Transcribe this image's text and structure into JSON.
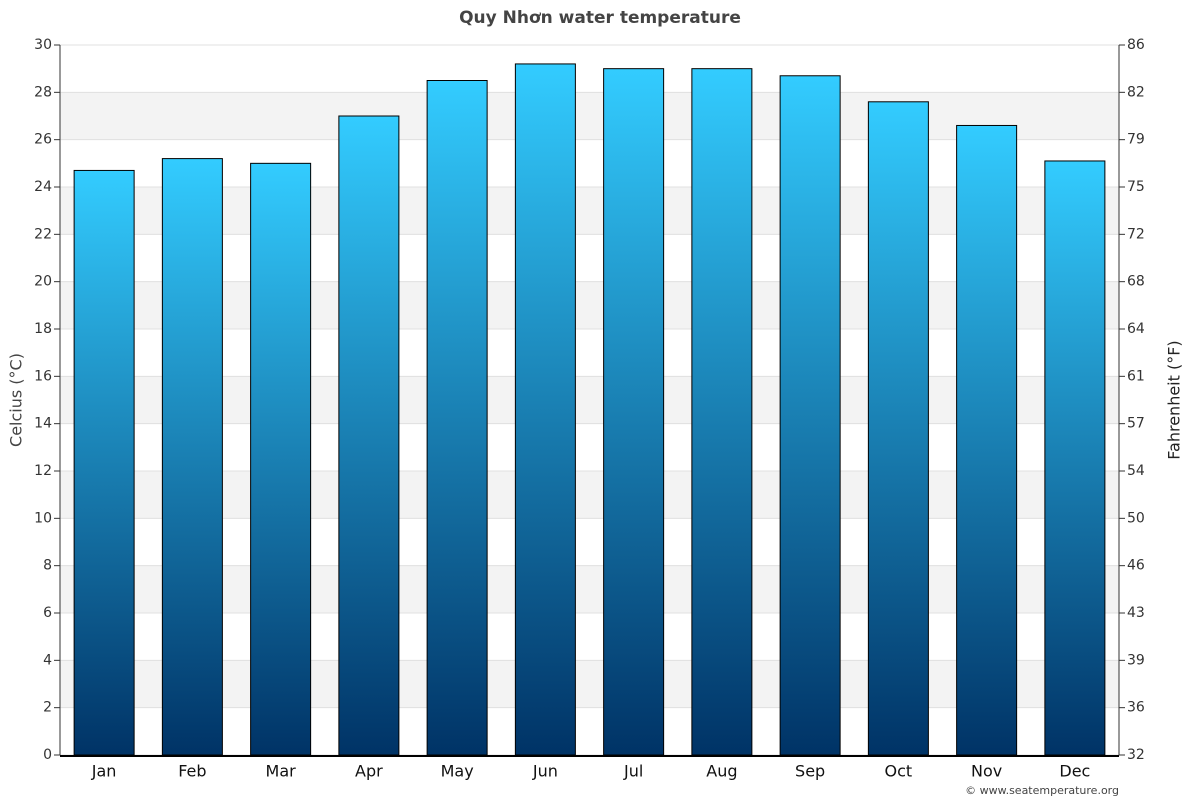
{
  "chart_data": {
    "type": "bar",
    "title": "Quy Nhơn water temperature",
    "categories": [
      "Jan",
      "Feb",
      "Mar",
      "Apr",
      "May",
      "Jun",
      "Jul",
      "Aug",
      "Sep",
      "Oct",
      "Nov",
      "Dec"
    ],
    "values": [
      24.7,
      25.2,
      25.0,
      27.0,
      28.5,
      29.2,
      29.0,
      29.0,
      28.7,
      27.6,
      26.6,
      25.1
    ],
    "gradient": [
      "#33ccff",
      "#003366"
    ],
    "ylabel": "Celcius (°C)",
    "y2label": "Fahrenheit (°F)",
    "ylim": [
      0,
      30
    ],
    "yticks": [
      0,
      2,
      4,
      6,
      8,
      10,
      12,
      14,
      16,
      18,
      20,
      22,
      24,
      26,
      28,
      30
    ],
    "y2lim": [
      32,
      86
    ],
    "y2ticks": [
      32,
      {
        "value": 35.6,
        "label": "36"
      },
      {
        "value": 39.2,
        "label": "39"
      },
      {
        "value": 42.8,
        "label": "43"
      },
      {
        "value": 46.4,
        "label": "46"
      },
      50,
      {
        "value": 53.6,
        "label": "54"
      },
      {
        "value": 57.2,
        "label": "57"
      },
      {
        "value": 60.8,
        "label": "61"
      },
      {
        "value": 64.4,
        "label": "64"
      },
      68,
      {
        "value": 71.6,
        "label": "72"
      },
      {
        "value": 75.2,
        "label": "75"
      },
      {
        "value": 78.8,
        "label": "79"
      },
      {
        "value": 82.4,
        "label": "82"
      },
      86
    ],
    "grid": true,
    "credit": "© www.seatemperature.org"
  }
}
